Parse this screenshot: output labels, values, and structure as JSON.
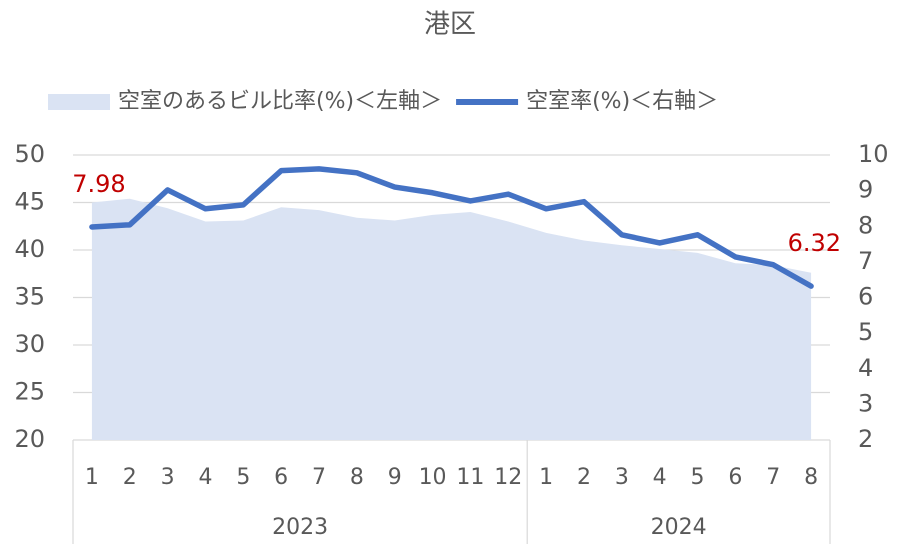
{
  "chart_data": {
    "type": "area-line",
    "title": "港区",
    "categories": [
      "1",
      "2",
      "3",
      "4",
      "5",
      "6",
      "7",
      "8",
      "9",
      "10",
      "11",
      "12",
      "1",
      "2",
      "3",
      "4",
      "5",
      "6",
      "7",
      "8"
    ],
    "groups": [
      "2023",
      "2023",
      "2023",
      "2023",
      "2023",
      "2023",
      "2023",
      "2023",
      "2023",
      "2023",
      "2023",
      "2023",
      "2024",
      "2024",
      "2024",
      "2024",
      "2024",
      "2024",
      "2024",
      "2024"
    ],
    "series": [
      {
        "name": "空室のあるビル比率(%)＜左軸＞",
        "type": "area",
        "color": "#dae3f3",
        "values": [
          45,
          45.4,
          44.4,
          43,
          43.1,
          44.5,
          44.2,
          43.4,
          43.1,
          43.7,
          44,
          43,
          41.8,
          41,
          40.5,
          40.1,
          39.7,
          38.6,
          38.4,
          37.6
        ]
      },
      {
        "name": "空室率(%)＜右軸＞",
        "type": "line",
        "axis": "y2",
        "color": "#4472c4",
        "values": [
          7.98,
          8.04,
          9.02,
          8.49,
          8.6,
          9.56,
          9.61,
          9.5,
          9.1,
          8.94,
          8.71,
          8.9,
          8.49,
          8.69,
          7.76,
          7.53,
          7.76,
          7.14,
          6.92,
          6.32
        ],
        "value_labels": [
          "7.98",
          null,
          null,
          null,
          null,
          null,
          null,
          null,
          null,
          null,
          null,
          null,
          null,
          null,
          null,
          null,
          null,
          null,
          null,
          "6.32"
        ],
        "label_color": "#c00000"
      }
    ],
    "ylim": [
      20,
      50
    ],
    "yticks": [
      20,
      25,
      30,
      35,
      40,
      45,
      50
    ],
    "y2lim": [
      2,
      10
    ],
    "y2ticks": [
      2,
      3,
      4,
      5,
      6,
      7,
      8,
      9,
      10
    ],
    "grid": true,
    "legend": "top"
  }
}
